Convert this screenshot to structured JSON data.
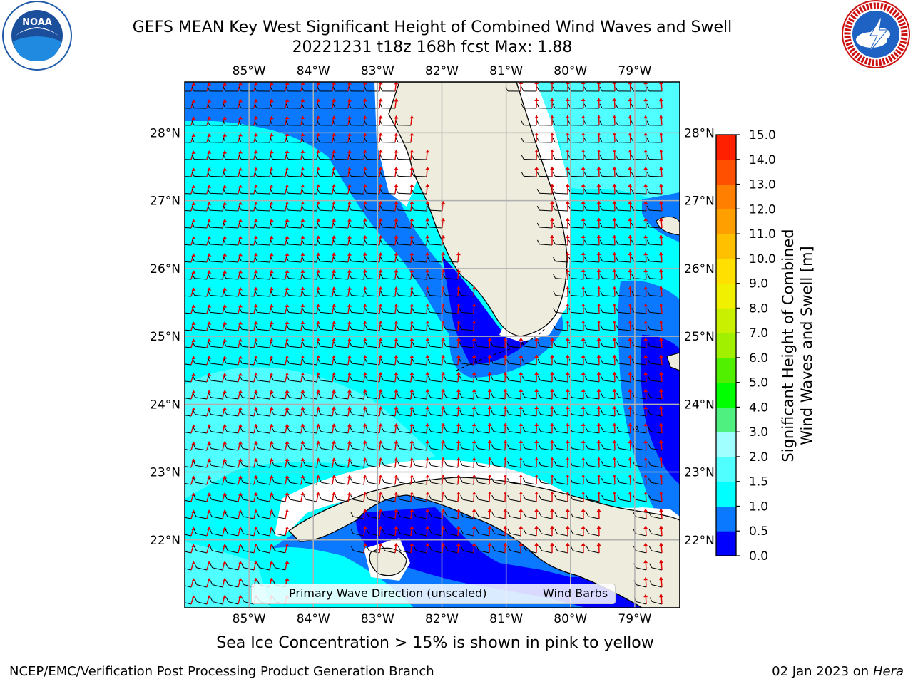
{
  "title": {
    "line1": "GEFS MEAN Key West Significant Height of Combined Wind Waves and Swell",
    "line2": "20221231 t18z 168h fcst   Max: 1.88"
  },
  "logos": {
    "noaa_text": "NOAA",
    "noaa_ring": "NATIONAL OCEANIC AND ATMOSPHERIC ADMINISTRATION · U.S. DEPARTMENT OF COMMERCE",
    "nws_ring": "NATIONAL WEATHER SERVICE"
  },
  "map": {
    "lon_labels": [
      "85°W",
      "84°W",
      "83°W",
      "82°W",
      "81°W",
      "80°W",
      "79°W"
    ],
    "lat_labels": [
      "28°N",
      "27°N",
      "26°N",
      "25°N",
      "24°N",
      "23°N",
      "22°N"
    ],
    "extent": {
      "lon_min": -86.0,
      "lon_max": -78.3,
      "lat_min": 21.0,
      "lat_max": 28.75
    },
    "land_color": "#eeecdc",
    "grid_color": "#b0b0b0"
  },
  "legend": {
    "wave_label": "Primary Wave Direction (unscaled)",
    "wave_color": "#e00000",
    "barb_label": "Wind Barbs",
    "barb_color": "#000000"
  },
  "colorbar": {
    "label_line1": "Significant Height of Combined",
    "label_line2": "Wind Waves and Swell [m]",
    "ticks": [
      "15.0",
      "14.0",
      "13.0",
      "12.0",
      "11.0",
      "10.0",
      "9.0",
      "8.0",
      "7.0",
      "6.0",
      "5.0",
      "4.0",
      "3.0",
      "2.0",
      "1.5",
      "1.0",
      "0.5",
      "0.0"
    ],
    "colors_bottom_to_top": [
      "#0000ff",
      "#0a78ff",
      "#00ffff",
      "#50ffff",
      "#a0ffff",
      "#50f080",
      "#00ff00",
      "#50f000",
      "#a0f000",
      "#c8f000",
      "#f0f000",
      "#ffe000",
      "#ffc000",
      "#ffa000",
      "#ff8000",
      "#ff5000",
      "#ff2000"
    ]
  },
  "caption": "Sea Ice Concentration > 15% is shown in pink to yellow",
  "footer": {
    "left": "NCEP/EMC/Verification Post Processing Product Generation Branch",
    "right_date": "02 Jan 2023 on ",
    "right_host": "Hera"
  }
}
